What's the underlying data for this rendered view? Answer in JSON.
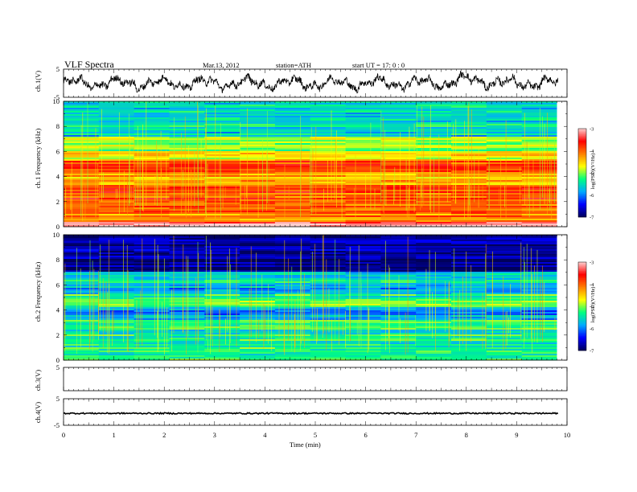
{
  "header": {
    "title": "VLF  Spectra",
    "date": "Mar.13, 2012",
    "station": "station=ATH",
    "start": "start  UT =   17: 0  : 0"
  },
  "colors": {
    "spectrogram_map": [
      "#00005a",
      "#0000ff",
      "#00aaff",
      "#00ff80",
      "#ffff00",
      "#ff8000",
      "#ff0000",
      "#ffd0d0"
    ],
    "trace": "#000000"
  },
  "chart_data": [
    {
      "type": "line",
      "panel": "ch1-waveform",
      "ylabel": "ch.1(V)",
      "ylim": [
        -5,
        5
      ],
      "yticks": [
        "5",
        "-5"
      ],
      "xlim": [
        0,
        10
      ],
      "xlabel": "",
      "series": [
        {
          "signal": "noisy waveform, amplitude about -4 to 4 V, baseline about 0 V"
        }
      ]
    },
    {
      "type": "heatmap",
      "panel": "ch1-spectrogram",
      "ylabel": "ch.1 Frequency  (kHz)",
      "ylim": [
        0,
        10
      ],
      "yticks": [
        "10",
        "8",
        "6",
        "4",
        "2",
        "0"
      ],
      "xlim": [
        0,
        9.8
      ],
      "colorbar": {
        "label": "log(PSD)(V²/Hz)",
        "range": [
          -7,
          -3
        ],
        "ticks": [
          "-3",
          "-4",
          "-5",
          "-6",
          "-7"
        ]
      },
      "bands": [
        {
          "f": [
            0,
            0.4
          ],
          "logpsd": -3.2
        },
        {
          "f": [
            0.4,
            1.5
          ],
          "logpsd": -4.1
        },
        {
          "f": [
            1.5,
            3.3
          ],
          "logpsd": -3.9
        },
        {
          "f": [
            3.3,
            4.4
          ],
          "logpsd": -4.4
        },
        {
          "f": [
            4.4,
            5.2
          ],
          "logpsd": -4.0
        },
        {
          "f": [
            5.2,
            6.0
          ],
          "logpsd": -4.6
        },
        {
          "f": [
            6.0,
            7.2
          ],
          "logpsd": -5.0
        },
        {
          "f": [
            7.2,
            10
          ],
          "logpsd": -5.6
        }
      ],
      "notes_visible": "vertical impulsive streaks (sferics) throughout"
    },
    {
      "type": "heatmap",
      "panel": "ch2-spectrogram",
      "ylabel": "ch.2 Frequency  (kHz)",
      "ylim": [
        0,
        10
      ],
      "yticks": [
        "10",
        "8",
        "6",
        "4",
        "2",
        "0"
      ],
      "xlim": [
        0,
        9.8
      ],
      "colorbar": {
        "label": "log(PSD)(V²/Hz)",
        "range": [
          -7,
          -3
        ],
        "ticks": [
          "-3",
          "-4",
          "-5",
          "-6",
          "-7"
        ]
      },
      "bands": [
        {
          "f": [
            0,
            1.0
          ],
          "logpsd": -5.3
        },
        {
          "f": [
            1.0,
            3.2
          ],
          "logpsd": -5.4
        },
        {
          "f": [
            3.2,
            4.2
          ],
          "logpsd": -5.9
        },
        {
          "f": [
            4.2,
            5.2
          ],
          "logpsd": -5.3
        },
        {
          "f": [
            5.2,
            6.0
          ],
          "logpsd": -5.8
        },
        {
          "f": [
            6.0,
            7.0
          ],
          "logpsd": -5.6
        },
        {
          "f": [
            7.0,
            10
          ],
          "logpsd": -6.8
        }
      ],
      "notes_visible": "vertical impulsive streaks (sferics) throughout"
    },
    {
      "type": "line",
      "panel": "ch3-waveform",
      "ylabel": "ch.3(V)",
      "ylim": [
        -5,
        5
      ],
      "yticks": [
        "5"
      ],
      "xlim": [
        0,
        10
      ],
      "series": [
        {
          "signal": "flat, no data"
        }
      ]
    },
    {
      "type": "line",
      "panel": "ch4-waveform",
      "ylabel": "ch.4(V)",
      "ylim": [
        -5,
        5
      ],
      "yticks": [
        "5",
        "-5"
      ],
      "xlim": [
        0,
        10
      ],
      "series": [
        {
          "signal": "nearly constant at about -0.5 V with small noise"
        }
      ]
    }
  ],
  "xaxis": {
    "label": "Time  (min)",
    "ticks": [
      "0",
      "1",
      "2",
      "3",
      "4",
      "5",
      "6",
      "7",
      "8",
      "9",
      "10"
    ],
    "range": [
      0,
      10
    ]
  }
}
